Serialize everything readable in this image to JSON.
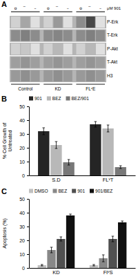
{
  "chart_data": [
    {
      "type": "heatmap",
      "title": "A",
      "annotation": "μM 901",
      "groups": [
        "Control",
        "KD",
        "FLᵛE"
      ],
      "rows": [
        "P-Erk",
        "T-Erk",
        "P-Akt",
        "T-Akt",
        "H3"
      ],
      "lanes": [
        "o",
        "̅",
        "–"
      ],
      "cells": [
        [
          [
            0.82,
            0.65,
            0.88
          ],
          [
            0.82,
            0.6,
            0.88
          ],
          [
            0.55,
            0.28,
            0.88
          ]
        ],
        [
          [
            0.55,
            0.5,
            0.55
          ],
          [
            0.55,
            0.52,
            0.55
          ],
          [
            0.55,
            0.5,
            0.55
          ]
        ],
        [
          [
            0.82,
            0.78,
            0.88
          ],
          [
            0.82,
            0.72,
            0.88
          ],
          [
            0.82,
            0.72,
            0.88
          ]
        ],
        [
          [
            0.62,
            0.58,
            0.62
          ],
          [
            0.62,
            0.58,
            0.62
          ],
          [
            0.62,
            0.58,
            0.62
          ]
        ],
        [
          [
            0.6,
            0.56,
            0.6
          ],
          [
            0.6,
            0.56,
            0.6
          ],
          [
            0.6,
            0.56,
            0.6
          ]
        ]
      ]
    },
    {
      "type": "bar",
      "title": "B",
      "ylabel": "% Cell Growth of\nUntreated",
      "categories": [
        "S.D",
        "FLᵛT"
      ],
      "series": [
        {
          "name": "901",
          "color": "#252525",
          "values": [
            32,
            37
          ],
          "errors": [
            2.5,
            2.0
          ]
        },
        {
          "name": "BEZ",
          "color": "#b8b8b8",
          "values": [
            22,
            34
          ],
          "errors": [
            2.5,
            2.5
          ]
        },
        {
          "name": "BEZ/901",
          "color": "#787878",
          "values": [
            9.5,
            6
          ],
          "errors": [
            2.0,
            1.0
          ]
        }
      ],
      "ylim": [
        0,
        50
      ],
      "yticks": [
        0,
        10,
        20,
        30,
        40,
        50
      ],
      "legend": "top-left"
    },
    {
      "type": "bar",
      "title": "C",
      "ylabel": "Apoptosis (%)",
      "categories": [
        "KD",
        "FlᵛS"
      ],
      "series": [
        {
          "name": "DMSO",
          "color": "#c0c0c0",
          "values": [
            2,
            2
          ],
          "errors": [
            0.5,
            0.5
          ]
        },
        {
          "name": "BEZ",
          "color": "#888888",
          "values": [
            13,
            7
          ],
          "errors": [
            2.0,
            2.5
          ]
        },
        {
          "name": "901",
          "color": "#505050",
          "values": [
            21,
            21
          ],
          "errors": [
            1.5,
            2.0
          ]
        },
        {
          "name": "901/BEZ",
          "color": "#101010",
          "values": [
            38,
            33
          ],
          "errors": [
            1.0,
            1.0
          ]
        }
      ],
      "ylim": [
        0,
        50
      ],
      "yticks": [
        0,
        10,
        20,
        30,
        40,
        50
      ],
      "legend": "top-left"
    }
  ]
}
